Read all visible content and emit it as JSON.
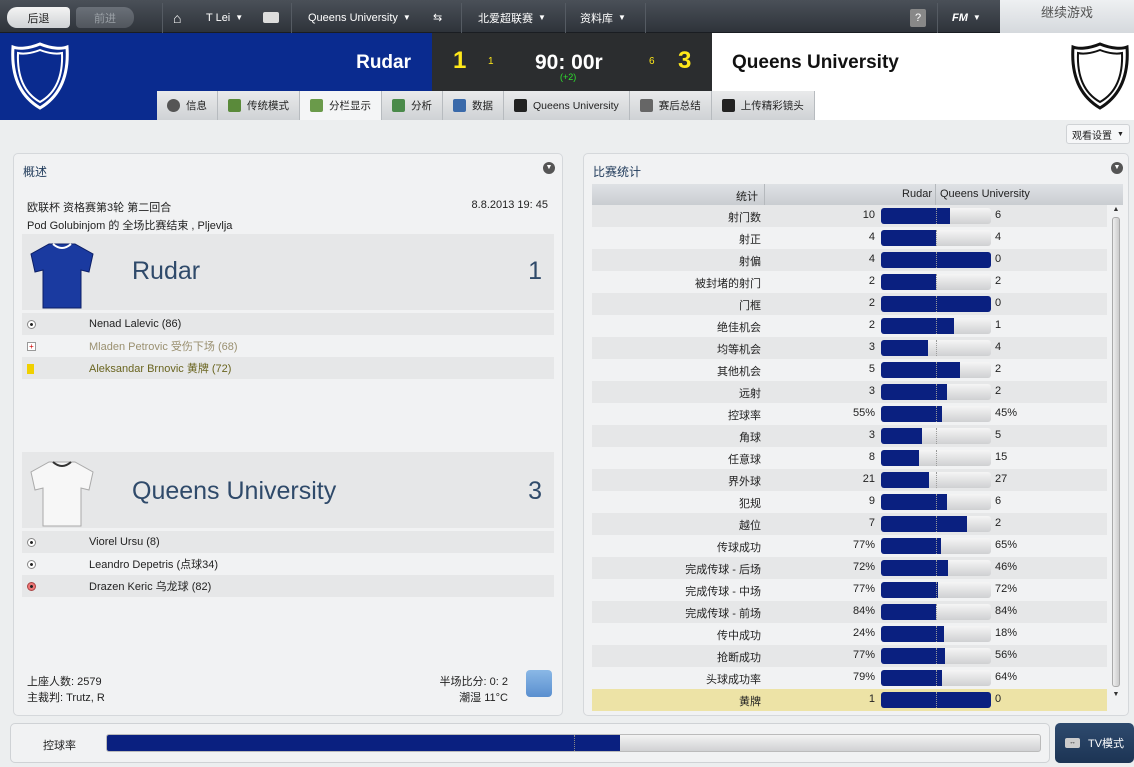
{
  "nav": {
    "back": "后退",
    "forward": "前进",
    "manager": "T Lei",
    "club": "Queens University",
    "league": "北爱超联赛",
    "database": "资料库",
    "help": "?",
    "fm": "FM",
    "continue": "继续游戏"
  },
  "match": {
    "home": "Rudar",
    "away": "Queens University",
    "home_score": "1",
    "away_score": "3",
    "home_small": "1",
    "away_small": "6",
    "time": "90: 00r",
    "added": "(+2)",
    "home_color": "#0a2b8f"
  },
  "tabs": [
    {
      "label": "信息",
      "icon": "info-icon"
    },
    {
      "label": "传统模式",
      "icon": "pitch-icon"
    },
    {
      "label": "分栏显示",
      "icon": "split-view-icon"
    },
    {
      "label": "分析",
      "icon": "analysis-icon"
    },
    {
      "label": "数据",
      "icon": "bar-chart-icon"
    },
    {
      "label": "Queens University",
      "icon": "team-icon"
    },
    {
      "label": "赛后总结",
      "icon": "shield-icon"
    },
    {
      "label": "上传精彩镜头",
      "icon": "video-icon"
    }
  ],
  "view_settings": "观看设置",
  "overview": {
    "title": "概述",
    "competition": "欧联杯 资格赛第3轮 第二回合",
    "datetime": "8.8.2013 19: 45",
    "venue": "Pod Golubinjom 的 全场比赛结束 , Pljevlja",
    "home": {
      "name": "Rudar",
      "score": "1",
      "events": [
        {
          "type": "goal",
          "text": "Nenad Lalevic (86)"
        },
        {
          "type": "injury",
          "text": "Mladen Petrovic 受伤下场 (68)"
        },
        {
          "type": "yellow-card",
          "text": "Aleksandar Brnovic 黄牌 (72)"
        }
      ]
    },
    "away": {
      "name": "Queens University",
      "score": "3",
      "events": [
        {
          "type": "goal",
          "text": "Viorel Ursu (8)"
        },
        {
          "type": "goal",
          "text": "Leandro Depetris (点球34)"
        },
        {
          "type": "own-goal",
          "text": "Drazen Keric 乌龙球 (82)"
        }
      ]
    },
    "attendance": "上座人数: 2579",
    "referee": "主裁判: Trutz, R",
    "halftime": "半场比分: 0: 2",
    "weather": "潮湿 11°C"
  },
  "stats": {
    "title": "比赛统计",
    "col_stat": "统计",
    "col_home": "Rudar",
    "col_away": "Queens University",
    "rows": [
      {
        "label": "射门数",
        "home": "10",
        "away": "6"
      },
      {
        "label": "射正",
        "home": "4",
        "away": "4"
      },
      {
        "label": "射偏",
        "home": "4",
        "away": "0"
      },
      {
        "label": "被封堵的射门",
        "home": "2",
        "away": "2"
      },
      {
        "label": "门框",
        "home": "2",
        "away": "0"
      },
      {
        "label": "绝佳机会",
        "home": "2",
        "away": "1"
      },
      {
        "label": "均等机会",
        "home": "3",
        "away": "4"
      },
      {
        "label": "其他机会",
        "home": "5",
        "away": "2"
      },
      {
        "label": "远射",
        "home": "3",
        "away": "2"
      },
      {
        "label": "控球率",
        "home": "55%",
        "away": "45%"
      },
      {
        "label": "角球",
        "home": "3",
        "away": "5"
      },
      {
        "label": "任意球",
        "home": "8",
        "away": "15"
      },
      {
        "label": "界外球",
        "home": "21",
        "away": "27"
      },
      {
        "label": "犯规",
        "home": "9",
        "away": "6"
      },
      {
        "label": "越位",
        "home": "7",
        "away": "2"
      },
      {
        "label": "传球成功",
        "home": "77%",
        "away": "65%"
      },
      {
        "label": "完成传球 - 后场",
        "home": "72%",
        "away": "46%"
      },
      {
        "label": "完成传球 - 中场",
        "home": "77%",
        "away": "72%"
      },
      {
        "label": "完成传球 - 前场",
        "home": "84%",
        "away": "84%"
      },
      {
        "label": "传中成功",
        "home": "24%",
        "away": "18%"
      },
      {
        "label": "抢断成功",
        "home": "77%",
        "away": "56%"
      },
      {
        "label": "头球成功率",
        "home": "79%",
        "away": "64%"
      },
      {
        "label": "黄牌",
        "home": "1",
        "away": "0",
        "highlight": true
      }
    ]
  },
  "bottom": {
    "label": "控球率",
    "possession_home_pct": 55,
    "tv": "TV模式"
  }
}
